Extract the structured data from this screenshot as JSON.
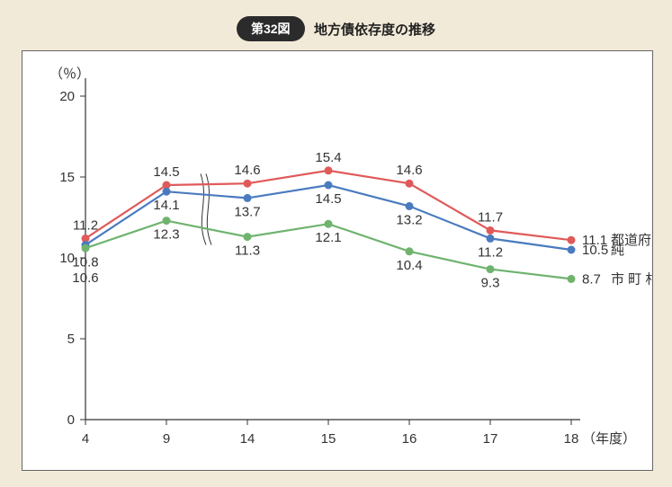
{
  "header": {
    "pill": "第32図",
    "title": "地方債依存度の推移"
  },
  "chart": {
    "type": "line",
    "background_color": "#ffffff",
    "page_background": "#f2ead8",
    "y_unit_label": "（％）",
    "x_unit_label": "（年度）",
    "ylim": [
      0,
      20
    ],
    "yticks": [
      0,
      5,
      10,
      15,
      20
    ],
    "x_categories": [
      "4",
      "9",
      "14",
      "15",
      "16",
      "17",
      "18"
    ],
    "axis_break_after_index": 1,
    "series": [
      {
        "key": "prefectures",
        "legend": "都道府県",
        "color": "#e05a5a",
        "values": [
          11.2,
          14.5,
          14.6,
          15.4,
          14.6,
          11.7,
          11.1
        ],
        "label_pos": [
          "above",
          "above",
          "above",
          "above",
          "above",
          "above",
          "right"
        ]
      },
      {
        "key": "total",
        "legend": "純　　計",
        "color": "#4a7bbf",
        "values": [
          10.8,
          14.1,
          13.7,
          14.5,
          13.2,
          11.2,
          10.5
        ],
        "label_pos": [
          "below",
          "below",
          "below",
          "below",
          "below",
          "below",
          "right"
        ]
      },
      {
        "key": "municipalities",
        "legend": "市 町 村",
        "color": "#6fb36f",
        "values": [
          10.6,
          12.3,
          11.3,
          12.1,
          10.4,
          9.3,
          8.7
        ],
        "label_pos": [
          "below",
          "below",
          "below",
          "below",
          "below",
          "below",
          "right"
        ]
      }
    ],
    "marker_radius": 4.5,
    "line_width": 2.2,
    "label_fontsize": 15,
    "tick_fontsize": 15
  }
}
